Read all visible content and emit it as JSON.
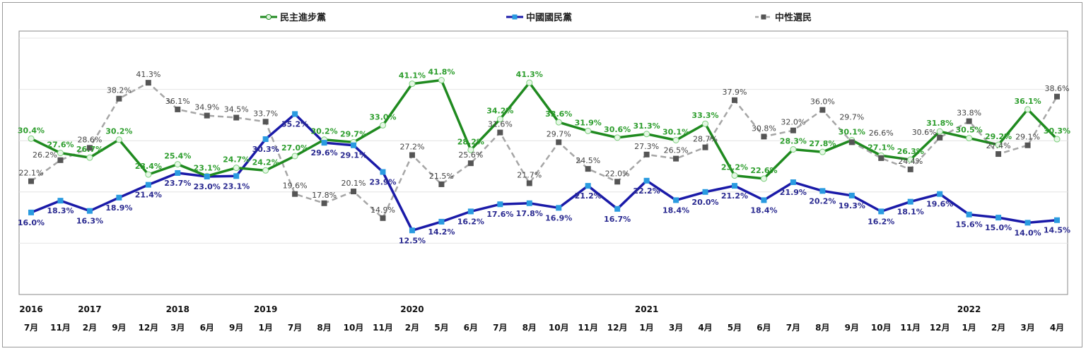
{
  "chart_data": {
    "type": "line",
    "title": "",
    "ylim": [
      0,
      50
    ],
    "grid": true,
    "legend_position": "top",
    "years": [
      {
        "label": "2016",
        "index": 0
      },
      {
        "label": "2017",
        "index": 2
      },
      {
        "label": "2018",
        "index": 5
      },
      {
        "label": "2019",
        "index": 8
      },
      {
        "label": "2020",
        "index": 13
      },
      {
        "label": "2021",
        "index": 21
      },
      {
        "label": "2022",
        "index": 32
      }
    ],
    "categories": [
      "7月",
      "11月",
      "2月",
      "9月",
      "12月",
      "3月",
      "6月",
      "9月",
      "1月",
      "7月",
      "8月",
      "10月",
      "11月",
      "2月",
      "5月",
      "6月",
      "7月",
      "8月",
      "10月",
      "11月",
      "12月",
      "1月",
      "3月",
      "4月",
      "5月",
      "6月",
      "7月",
      "8月",
      "9月",
      "10月",
      "11月",
      "12月",
      "1月",
      "2月",
      "3月",
      "4月"
    ],
    "series": [
      {
        "name": "民主進步黨",
        "color": "#1f8a1f",
        "label_color": "#2e9e2e",
        "marker": "circle",
        "dash": false,
        "values": [
          30.4,
          27.6,
          26.7,
          30.2,
          23.4,
          25.4,
          23.1,
          24.7,
          24.2,
          27.0,
          30.2,
          29.7,
          33.0,
          41.1,
          41.8,
          28.2,
          34.2,
          41.3,
          33.6,
          31.9,
          30.6,
          31.3,
          30.1,
          33.3,
          23.2,
          22.6,
          28.3,
          27.8,
          30.1,
          27.1,
          26.3,
          31.8,
          30.5,
          29.2,
          36.1,
          30.3
        ]
      },
      {
        "name": "中國國民黨",
        "color": "#1a1aa8",
        "label_color": "#2a2a90",
        "marker": "square-blue",
        "dash": false,
        "values": [
          16.0,
          18.3,
          16.3,
          18.9,
          21.4,
          23.7,
          23.0,
          23.1,
          30.3,
          35.2,
          29.6,
          29.1,
          23.9,
          12.5,
          14.2,
          16.2,
          17.6,
          17.8,
          16.9,
          21.2,
          16.7,
          22.2,
          18.4,
          20.0,
          21.2,
          18.4,
          21.9,
          20.2,
          19.3,
          16.2,
          18.1,
          19.6,
          15.6,
          15.0,
          14.0,
          14.5
        ]
      },
      {
        "name": "中性選民",
        "color": "#a6a6a6",
        "label_color": "#444444",
        "marker": "square-gray",
        "dash": true,
        "values": [
          22.1,
          26.2,
          28.6,
          38.2,
          41.3,
          36.1,
          34.9,
          34.5,
          33.7,
          19.6,
          17.8,
          20.1,
          14.9,
          27.2,
          21.5,
          25.6,
          31.6,
          21.7,
          29.7,
          24.5,
          22.0,
          27.3,
          26.5,
          28.7,
          37.9,
          30.8,
          32.0,
          36.0,
          29.7,
          26.6,
          24.4,
          30.6,
          33.8,
          27.4,
          29.1,
          38.6
        ]
      }
    ]
  }
}
